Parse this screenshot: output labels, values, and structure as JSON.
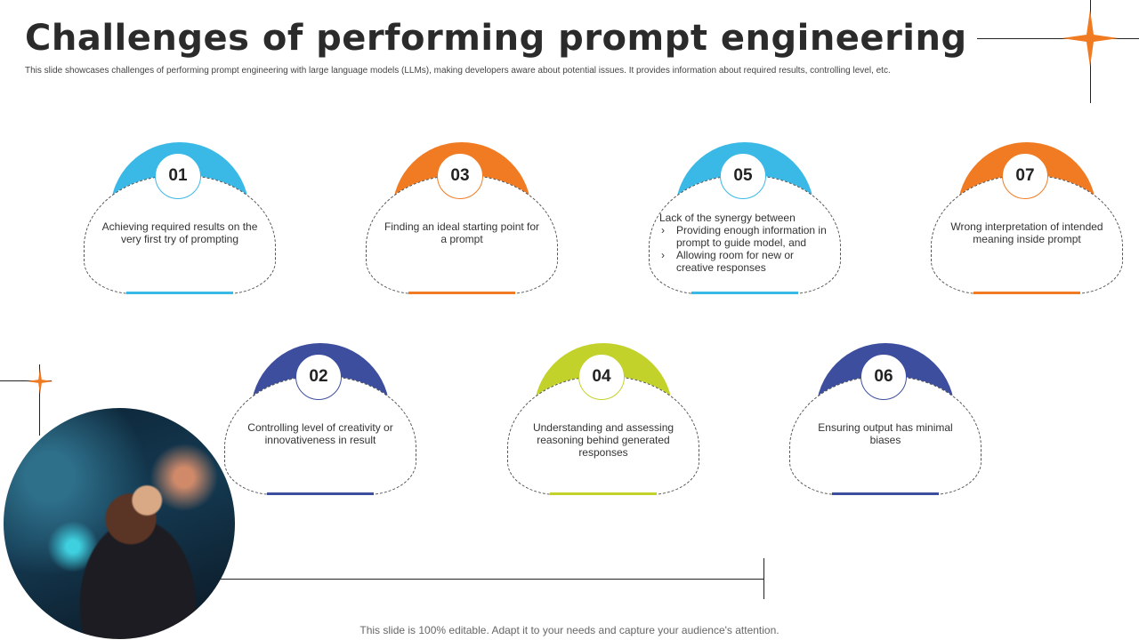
{
  "header": {
    "title": "Challenges of performing prompt engineering",
    "subtitle": "This slide showcases challenges of performing prompt engineering with large language models (LLMs), making developers aware about potential issues. It provides information about required results, controlling level, etc."
  },
  "colors": {
    "blue": "#3ab8e6",
    "orange": "#f07b22",
    "navy": "#3d4e9e",
    "lime": "#c3d12b",
    "star": "#f07b22"
  },
  "cards": [
    {
      "number": "01",
      "text": "Achieving required results on the very first try of prompting",
      "color": "blue"
    },
    {
      "number": "03",
      "text": "Finding an ideal starting point for a prompt",
      "color": "orange"
    },
    {
      "number": "05",
      "intro": "Lack of the synergy between",
      "bullets": [
        "Providing enough information in prompt to guide model, and",
        "Allowing room for new or creative responses"
      ],
      "color": "blue"
    },
    {
      "number": "07",
      "text": "Wrong interpretation of intended meaning inside prompt",
      "color": "orange"
    },
    {
      "number": "02",
      "text": "Controlling level of creativity or innovativeness in result",
      "color": "navy"
    },
    {
      "number": "04",
      "text": "Understanding and assessing reasoning behind generated responses",
      "color": "lime"
    },
    {
      "number": "06",
      "text": "Ensuring output has minimal biases",
      "color": "navy"
    }
  ],
  "footer": {
    "text": "This slide is 100% editable. Adapt it to your needs and capture your audience's attention."
  }
}
